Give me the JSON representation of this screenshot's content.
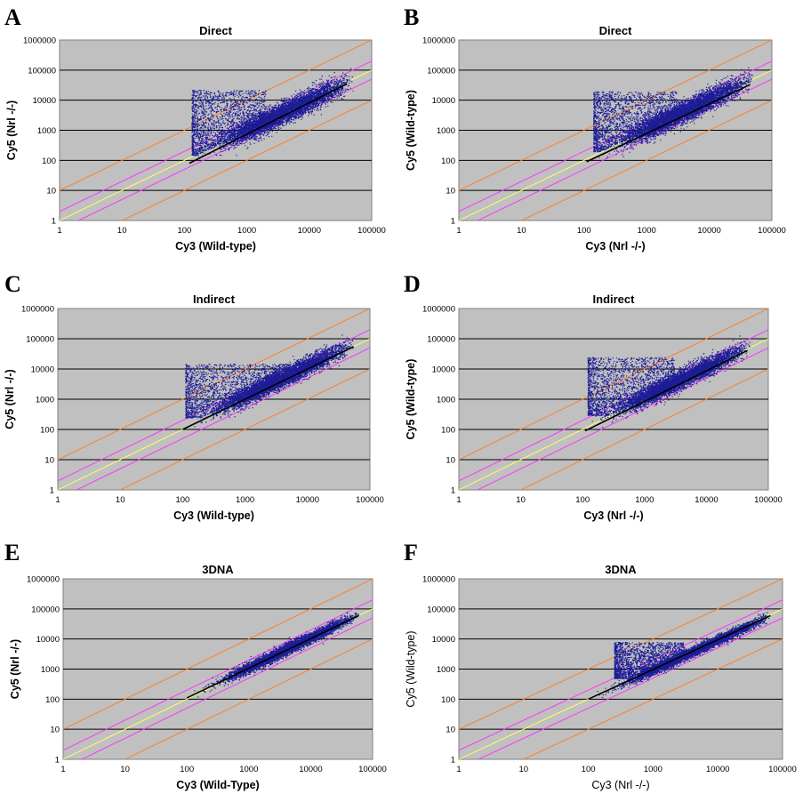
{
  "colors": {
    "plot_bg": "#c0c0c0",
    "grid": "#000000",
    "points": "#1c1c96",
    "fit_line": "#000000",
    "line_2fold": "#ff33ff",
    "line_1to1": "#ffff66",
    "line_10fold": "#ff7f27"
  },
  "chart_data": [
    {
      "panel": "A",
      "type": "scatter",
      "title": "Direct",
      "xlabel": "Cy3 (Wild-type)",
      "ylabel": "Cy5 (Nrl -/-)",
      "xscale": "log",
      "yscale": "log",
      "xlim": [
        1,
        100000
      ],
      "ylim": [
        1,
        1000000
      ],
      "xticks": [
        "1",
        "10",
        "100",
        "1000",
        "10000",
        "100000"
      ],
      "yticks": [
        "1",
        "10",
        "100",
        "1000",
        "10000",
        "100000",
        "1000000"
      ],
      "grid": "horizontal",
      "reference_lines": [
        {
          "label": "1:1",
          "slope_log": 1
        },
        {
          "label": "2-fold",
          "ratio": 2
        },
        {
          "label": "10-fold",
          "ratio": 10
        }
      ],
      "fit_line": {
        "x": [
          120,
          40000
        ],
        "y": [
          80,
          35000
        ]
      },
      "scatter": {
        "x_range": [
          120,
          50000
        ],
        "main_ratio": 1.0,
        "spread_log": 0.18,
        "upper_cloud": {
          "x_range": [
            130,
            2000
          ],
          "y_range": [
            150,
            22000
          ]
        }
      }
    },
    {
      "panel": "B",
      "type": "scatter",
      "title": "Direct",
      "xlabel": "Cy3 (Nrl -/-)",
      "ylabel": "Cy5 (Wild-type)",
      "xscale": "log",
      "yscale": "log",
      "xlim": [
        1,
        100000
      ],
      "ylim": [
        1,
        1000000
      ],
      "xticks": [
        "1",
        "10",
        "100",
        "1000",
        "10000",
        "100000"
      ],
      "yticks": [
        "1",
        "10",
        "100",
        "1000",
        "10000",
        "100000",
        "1000000"
      ],
      "grid": "horizontal",
      "reference_lines": [
        {
          "label": "1:1",
          "slope_log": 1
        },
        {
          "label": "2-fold",
          "ratio": 2
        },
        {
          "label": "10-fold",
          "ratio": 10
        }
      ],
      "fit_line": {
        "x": [
          110,
          45000
        ],
        "y": [
          90,
          33000
        ]
      },
      "scatter": {
        "x_range": [
          130,
          50000
        ],
        "main_ratio": 1.1,
        "spread_log": 0.17,
        "upper_cloud": {
          "x_range": [
            140,
            3000
          ],
          "y_range": [
            200,
            20000
          ]
        }
      }
    },
    {
      "panel": "C",
      "type": "scatter",
      "title": "Indirect",
      "xlabel": "Cy3 (Wild-type)",
      "ylabel": "Cy5 (Nrl -/-)",
      "xscale": "log",
      "yscale": "log",
      "xlim": [
        1,
        100000
      ],
      "ylim": [
        1,
        1000000
      ],
      "xticks": [
        "1",
        "10",
        "100",
        "1000",
        "10000",
        "100000"
      ],
      "yticks": [
        "1",
        "10",
        "100",
        "1000",
        "10000",
        "100000",
        "1000000"
      ],
      "grid": "horizontal",
      "reference_lines": [
        {
          "label": "1:1",
          "slope_log": 1
        },
        {
          "label": "2-fold",
          "ratio": 2
        },
        {
          "label": "10-fold",
          "ratio": 10
        }
      ],
      "fit_line": {
        "x": [
          100,
          55000
        ],
        "y": [
          100,
          55000
        ]
      },
      "scatter": {
        "x_range": [
          100,
          55000
        ],
        "main_ratio": 1.3,
        "spread_log": 0.15,
        "upper_cloud": {
          "x_range": [
            110,
            5000
          ],
          "y_range": [
            250,
            15000
          ]
        }
      }
    },
    {
      "panel": "D",
      "type": "scatter",
      "title": "Indirect",
      "xlabel": "Cy3 (Nrl -/-)",
      "ylabel": "Cy5 (Wild-type)",
      "xscale": "log",
      "yscale": "log",
      "xlim": [
        1,
        100000
      ],
      "ylim": [
        1,
        1000000
      ],
      "xticks": [
        "1",
        "10",
        "100",
        "1000",
        "10000",
        "100000"
      ],
      "yticks": [
        "1",
        "10",
        "100",
        "1000",
        "10000",
        "100000",
        "1000000"
      ],
      "grid": "horizontal",
      "reference_lines": [
        {
          "label": "1:1",
          "slope_log": 1
        },
        {
          "label": "2-fold",
          "ratio": 2
        },
        {
          "label": "10-fold",
          "ratio": 10
        }
      ],
      "fit_line": {
        "x": [
          110,
          45000
        ],
        "y": [
          90,
          40000
        ]
      },
      "scatter": {
        "x_range": [
          110,
          50000
        ],
        "main_ratio": 1.2,
        "spread_log": 0.15,
        "upper_cloud": {
          "x_range": [
            120,
            3000
          ],
          "y_range": [
            300,
            25000
          ]
        }
      }
    },
    {
      "panel": "E",
      "type": "scatter",
      "title": "3DNA",
      "xlabel": "Cy3 (Wild-Type)",
      "ylabel": "Cy5 (Nrl -/-)",
      "xscale": "log",
      "yscale": "log",
      "xlim": [
        1,
        100000
      ],
      "ylim": [
        1,
        1000000
      ],
      "xticks": [
        "1",
        "10",
        "100",
        "1000",
        "10000",
        "100000"
      ],
      "yticks": [
        "1",
        "10",
        "100",
        "1000",
        "10000",
        "100000",
        "1000000"
      ],
      "grid": "horizontal",
      "reference_lines": [
        {
          "label": "1:1",
          "slope_log": 1
        },
        {
          "label": "2-fold",
          "ratio": 2
        },
        {
          "label": "10-fold",
          "ratio": 10
        }
      ],
      "fit_line": {
        "x": [
          100,
          60000
        ],
        "y": [
          110,
          60000
        ]
      },
      "scatter": {
        "x_range": [
          100,
          60000
        ],
        "main_ratio": 1.15,
        "spread_log": 0.09,
        "upper_cloud": null
      }
    },
    {
      "panel": "F",
      "type": "scatter",
      "title": "3DNA",
      "xlabel": "Cy3 (Nrl -/-)",
      "ylabel": "Cy5 (Wild-type)",
      "xscale": "log",
      "yscale": "log",
      "xlim": [
        1,
        100000
      ],
      "ylim": [
        1,
        1000000
      ],
      "xticks": [
        "1",
        "10",
        "100",
        "1000",
        "10000",
        "100000"
      ],
      "yticks": [
        "1",
        "10",
        "100",
        "1000",
        "10000",
        "100000",
        "1000000"
      ],
      "grid": "horizontal",
      "reference_lines": [
        {
          "label": "1:1",
          "slope_log": 1
        },
        {
          "label": "2-fold",
          "ratio": 2
        },
        {
          "label": "10-fold",
          "ratio": 10
        }
      ],
      "fit_line": {
        "x": [
          100,
          65000
        ],
        "y": [
          100,
          60000
        ]
      },
      "scatter": {
        "x_range": [
          100,
          65000
        ],
        "main_ratio": 0.95,
        "spread_log": 0.08,
        "upper_cloud": {
          "x_range": [
            250,
            3000
          ],
          "y_range": [
            500,
            8000
          ]
        }
      }
    }
  ]
}
